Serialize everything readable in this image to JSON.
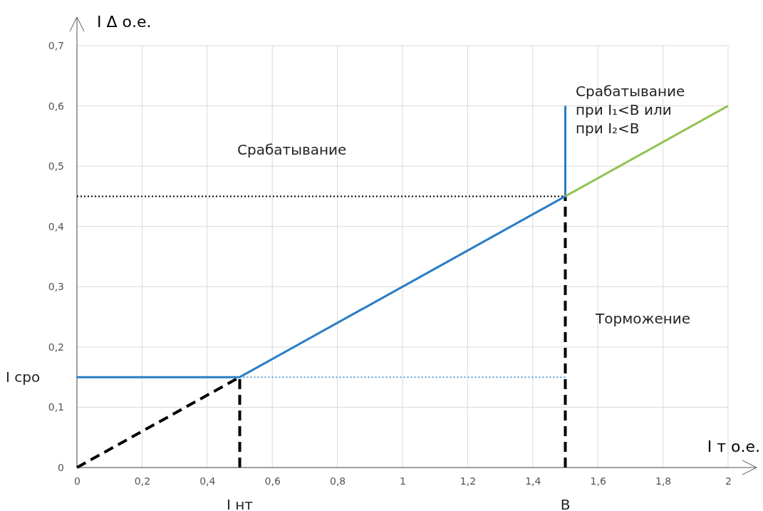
{
  "chart_data": {
    "type": "line",
    "xlabel": "I т о.е.",
    "ylabel": "I Δ  о.е.",
    "xlim": [
      0,
      2
    ],
    "ylim": [
      0,
      0.7
    ],
    "xticks": [
      0,
      {
        "value": 0.2,
        "label": "0,2"
      },
      {
        "value": 0.4,
        "label": "0,4"
      },
      {
        "value": 0.6,
        "label": "0,6"
      },
      {
        "value": 0.8,
        "label": "0,8"
      },
      1,
      {
        "value": 1.2,
        "label": "1,2"
      },
      {
        "value": 1.4,
        "label": "1,4"
      },
      {
        "value": 1.6,
        "label": "1,6"
      },
      {
        "value": 1.8,
        "label": "1,8"
      },
      2
    ],
    "yticks": [
      0,
      {
        "value": 0.1,
        "label": "0,1"
      },
      {
        "value": 0.2,
        "label": "0,2"
      },
      {
        "value": 0.3,
        "label": "0,3"
      },
      {
        "value": 0.4,
        "label": "0,4"
      },
      {
        "value": 0.5,
        "label": "0,5"
      },
      {
        "value": 0.6,
        "label": "0,6"
      },
      {
        "value": 0.7,
        "label": "0,7"
      }
    ],
    "grid": true,
    "marker": "none",
    "series": [
      {
        "color": "#000000",
        "line_style": "dotted",
        "x": [
          0,
          1.5
        ],
        "values": [
          0.45,
          0.45
        ]
      },
      {
        "color": "#5b9bd5",
        "line_style": "dotted",
        "x": [
          0.5,
          1.5
        ],
        "values": [
          0.15,
          0.15
        ]
      },
      {
        "color": "#000000",
        "line_style": "dashed",
        "x": [
          0,
          0.5
        ],
        "values": [
          0,
          0.15
        ]
      },
      {
        "color": "#000000",
        "line_style": "dashed",
        "x": [
          0.5,
          0.5
        ],
        "values": [
          0,
          0.15
        ]
      },
      {
        "color": "#000000",
        "line_style": "dashed",
        "x": [
          1.5,
          1.5
        ],
        "values": [
          0,
          0.45
        ]
      },
      {
        "color": "#2a7dc6",
        "line_style": "solid",
        "x": [
          0,
          0.5,
          1.5,
          1.5
        ],
        "values": [
          0.15,
          0.15,
          0.45,
          0.6
        ]
      },
      {
        "color": "#92c353",
        "line_style": "solid",
        "x": [
          1.5,
          2
        ],
        "values": [
          0.45,
          0.6
        ]
      }
    ],
    "annotations": [
      {
        "text": "I нт",
        "x": 0.5,
        "y": 0
      },
      {
        "text": "B",
        "x": 1.5,
        "y": 0
      },
      {
        "text": "I сро",
        "x": 0,
        "y": 0.15
      },
      "Срабатывание",
      "Срабатывание\nпри I₁<B или\nпри I₂<B",
      "Торможение"
    ]
  }
}
